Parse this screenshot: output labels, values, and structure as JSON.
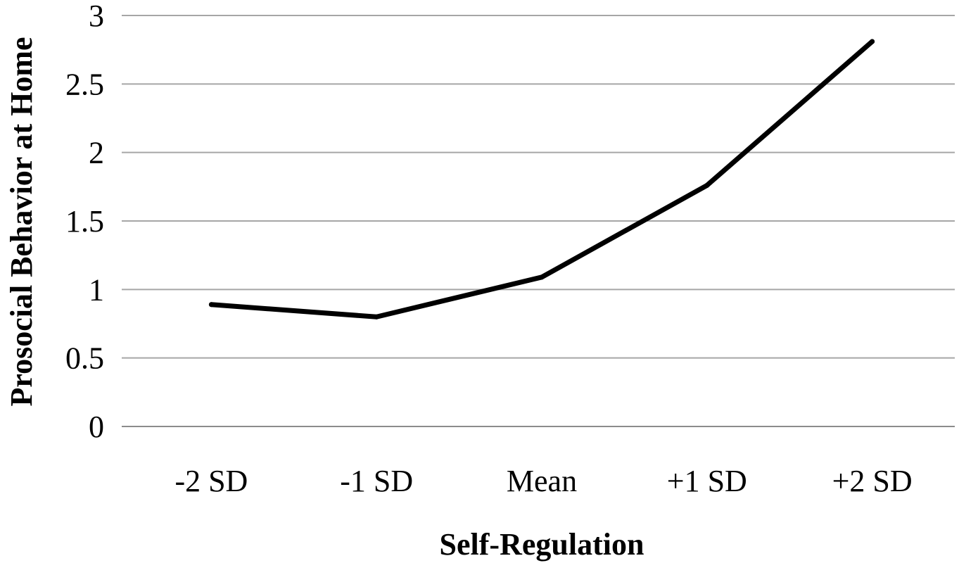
{
  "chart_data": {
    "type": "line",
    "title": "",
    "xlabel": "Self-Regulation",
    "ylabel": "Prosocial Behavior at Home",
    "categories": [
      "-2 SD",
      "-1 SD",
      "Mean",
      "+1 SD",
      "+2 SD"
    ],
    "series": [
      {
        "values": [
          0.89,
          0.8,
          1.09,
          1.76,
          2.81
        ]
      }
    ],
    "ylim": [
      0,
      3
    ],
    "yticks": [
      "0",
      "0.5",
      "1",
      "1.5",
      "2",
      "2.5",
      "3"
    ],
    "grid": true,
    "legend": "none",
    "colors": {
      "line": "#000000",
      "grid": "#a6a6a6"
    }
  }
}
